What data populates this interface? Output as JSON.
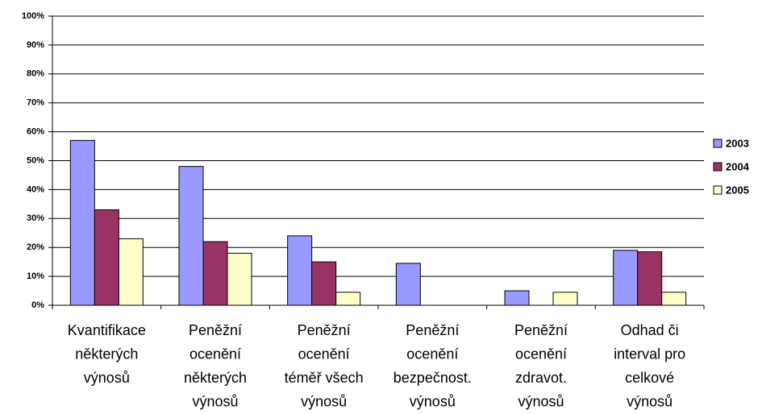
{
  "chart_data": {
    "type": "bar",
    "categories": [
      [
        "Kvantifikace",
        "některých",
        "výnosů"
      ],
      [
        "Peněžní",
        "ocenění",
        "některých",
        "výnosů"
      ],
      [
        "Peněžní",
        "ocenění",
        "téměř všech",
        "výnosů"
      ],
      [
        "Peněžní",
        "ocenění",
        "bezpečnost.",
        "výnosů"
      ],
      [
        "Peněžní",
        "ocenění",
        "zdravot.",
        "výnosů"
      ],
      [
        "Odhad či",
        "interval pro",
        "celkové",
        "výnosů"
      ]
    ],
    "series": [
      {
        "name": "2003",
        "color": "#9999ff",
        "values": [
          57,
          48,
          24,
          14.5,
          5,
          19
        ]
      },
      {
        "name": "2004",
        "color": "#993366",
        "values": [
          33,
          22,
          15,
          0,
          0,
          18.5
        ]
      },
      {
        "name": "2005",
        "color": "#ffffcc",
        "values": [
          23,
          18,
          4.5,
          0,
          4.5,
          4.5
        ]
      }
    ],
    "ylim": [
      0,
      100
    ],
    "yticks": [
      {
        "value": 0,
        "label": "0%"
      },
      {
        "value": 10,
        "label": "10%"
      },
      {
        "value": 20,
        "label": "20%"
      },
      {
        "value": 30,
        "label": "30%"
      },
      {
        "value": 40,
        "label": "40%"
      },
      {
        "value": 50,
        "label": "50%"
      },
      {
        "value": 60,
        "label": "60%"
      },
      {
        "value": 70,
        "label": "70%"
      },
      {
        "value": 80,
        "label": "80%"
      },
      {
        "value": 90,
        "label": "90%"
      },
      {
        "value": 100,
        "label": "100%"
      }
    ],
    "grid": true,
    "legend": "right"
  }
}
